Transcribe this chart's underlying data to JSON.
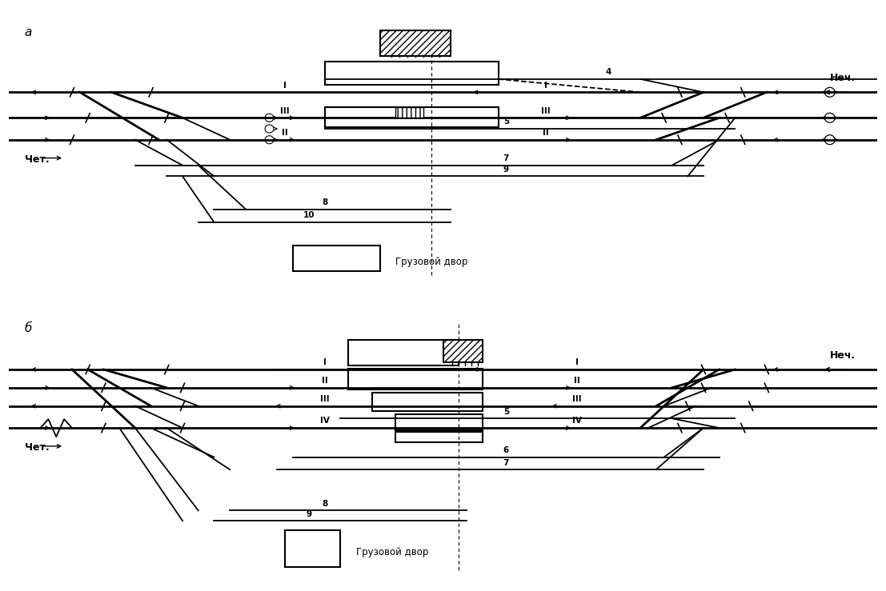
{
  "background": "#ffffff",
  "fig_width": 11.07,
  "fig_height": 7.39,
  "label_a": "a",
  "label_b": "б",
  "nech_label": "Неч.",
  "chet_label": "Чет.",
  "gruz_label": "Грузовой двор"
}
